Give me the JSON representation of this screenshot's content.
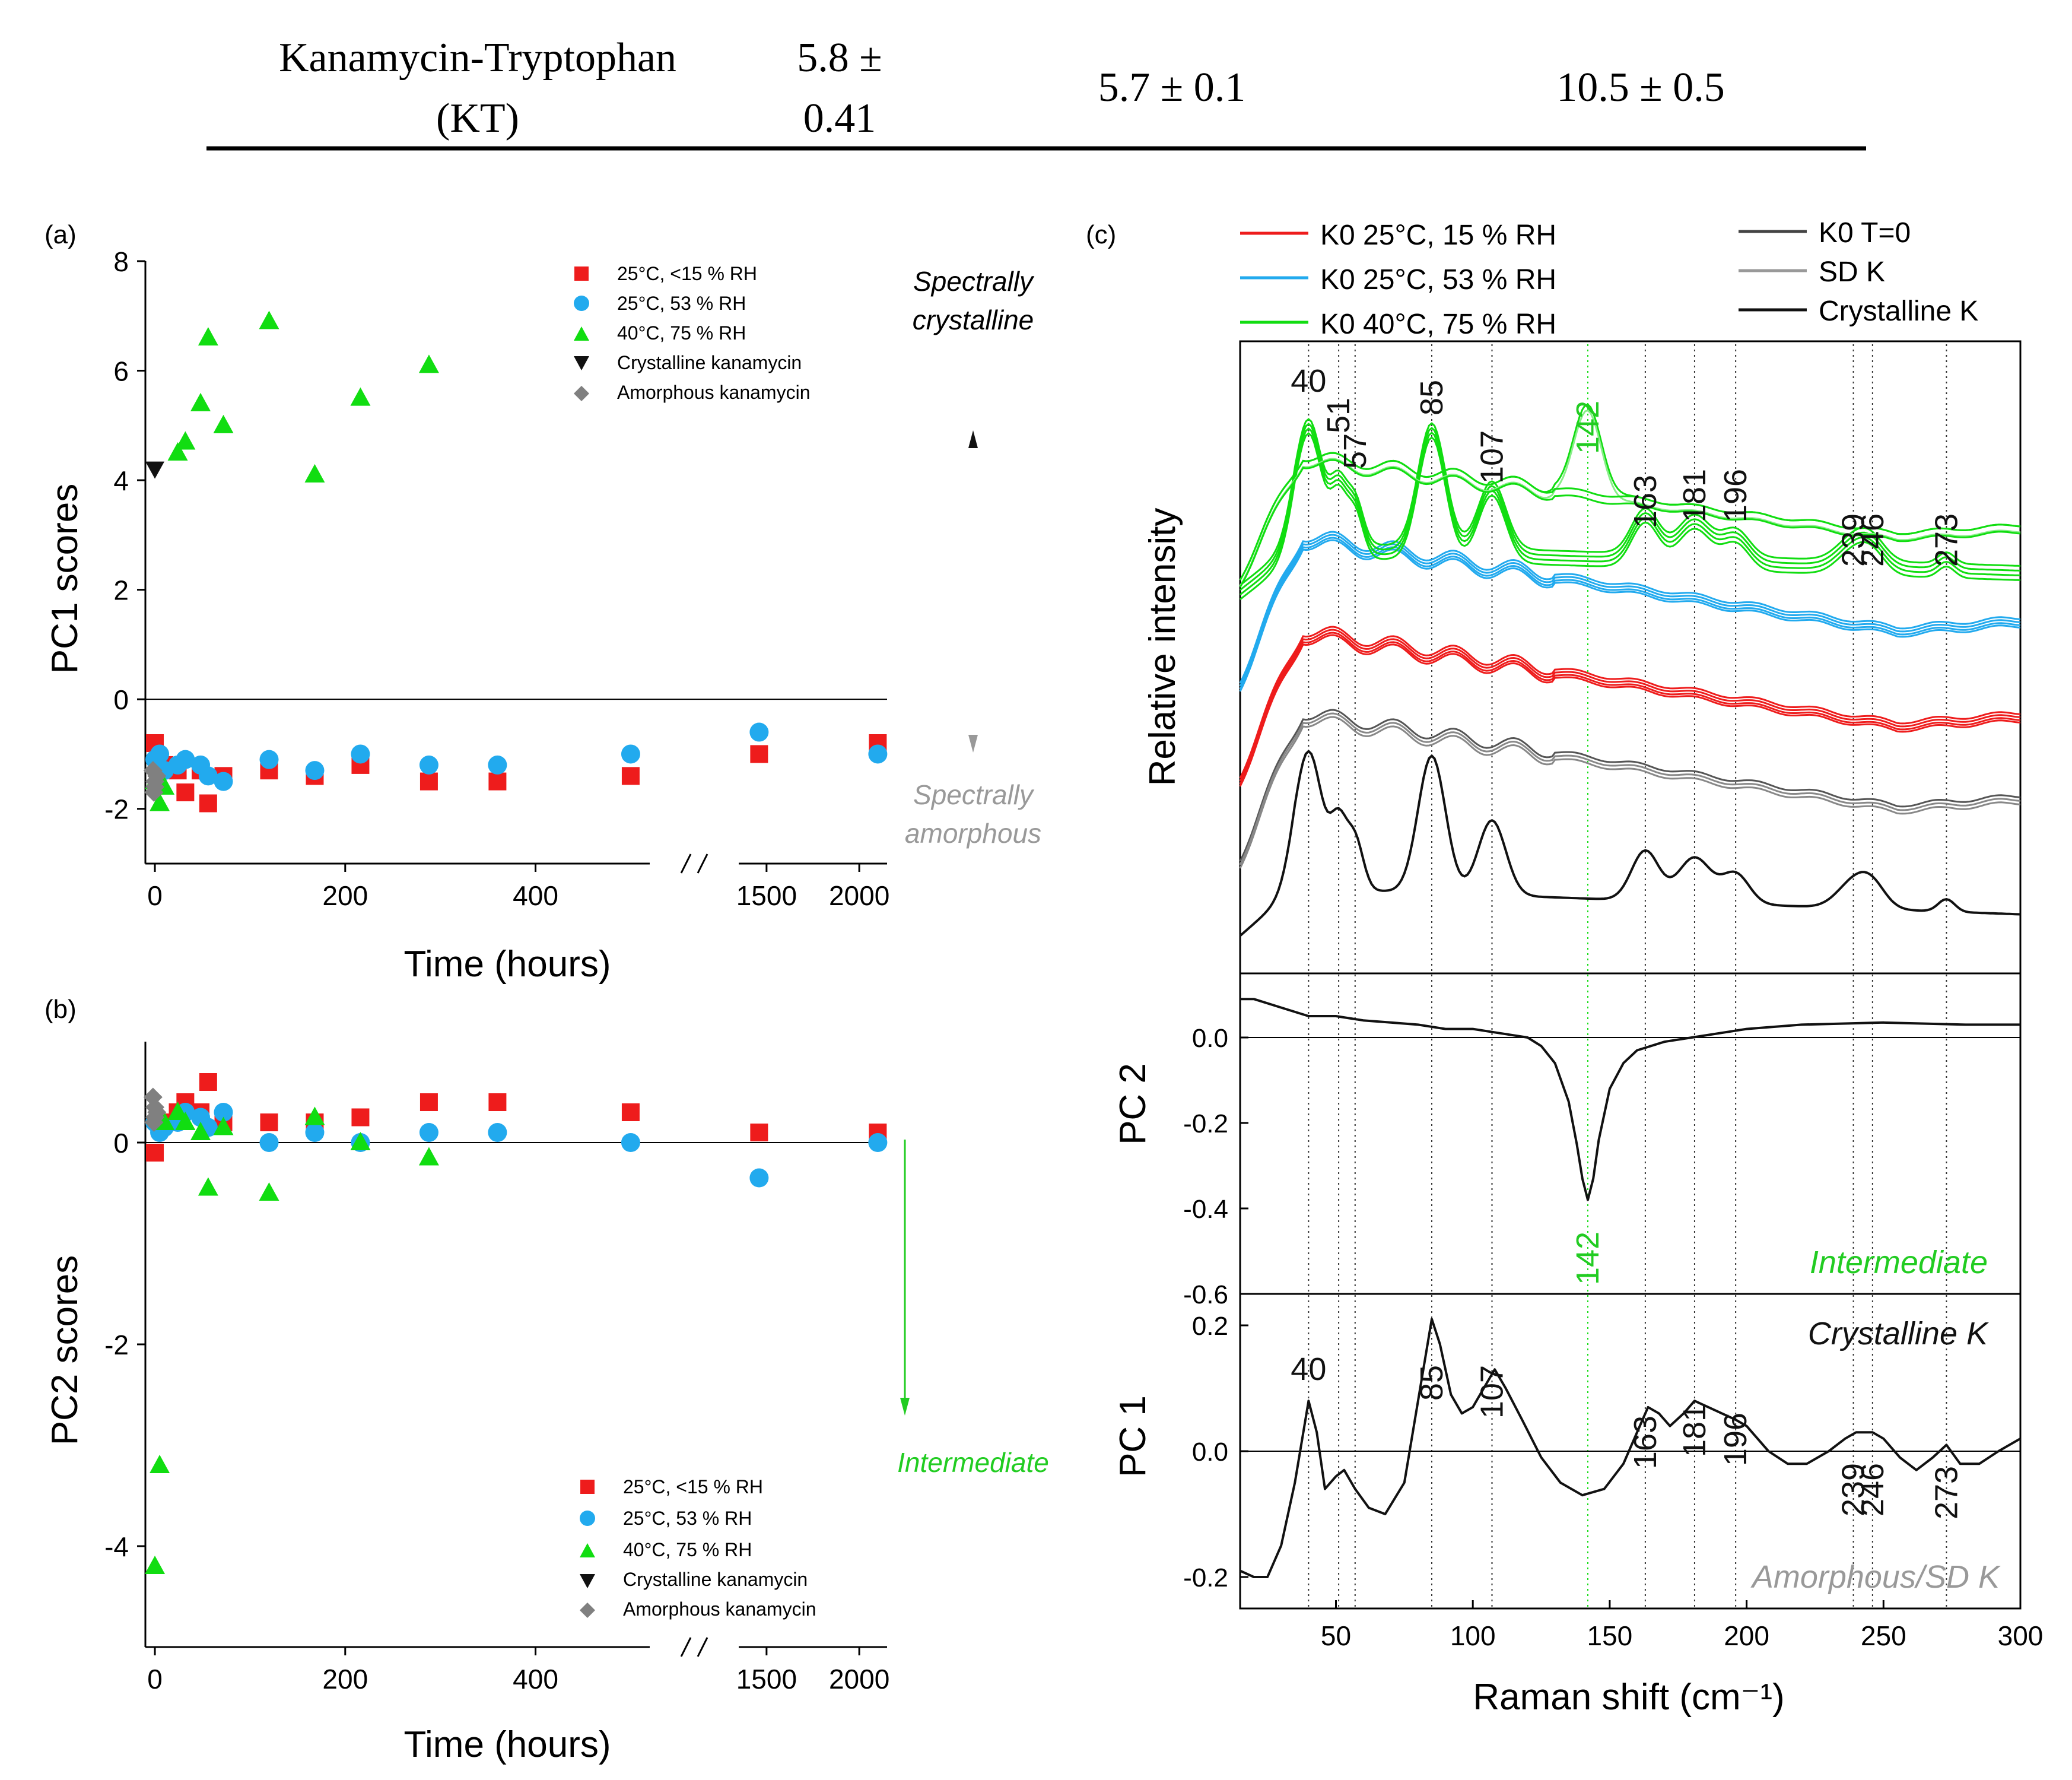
{
  "table_row": {
    "name_line1": "Kanamycin-Tryptophan",
    "name_line2": "(KT)",
    "col2_line1": "5.8 ±",
    "col2_line2": "0.41",
    "col3": "5.7 ± 0.1",
    "col4": "10.5 ± 0.5"
  },
  "colors": {
    "red": "#ee1c1c",
    "blue": "#22aaee",
    "green": "#11dd11",
    "black": "#111111",
    "gray": "#808080",
    "label_green": "#22cc22",
    "label_gray": "#999999"
  },
  "chart_data": [
    {
      "id": "a",
      "panel_label": "(a)",
      "type": "scatter",
      "xlabel": "Time (hours)",
      "ylabel": "PC1 scores",
      "ylim": [
        -3,
        8
      ],
      "yticks": [
        -2,
        0,
        2,
        4,
        6,
        8
      ],
      "xtick_labels": [
        "0",
        "200",
        "400",
        "1500",
        "2000"
      ],
      "x_axis_note": "broken axis: 0-520 h then 1350-2150 h",
      "legend": [
        "25°C, <15 % RH",
        "25°C, 53 % RH",
        "40°C, 75 % RH",
        "Crystalline kanamycin",
        "Amorphous kanamycin"
      ],
      "annotation_top": [
        "Spectrally",
        "crystalline"
      ],
      "annotation_bottom": [
        "Spectrally",
        "amorphous"
      ],
      "series": [
        {
          "name": "25°C, <15 % RH",
          "x": [
            0,
            5,
            10,
            24,
            32,
            48,
            56,
            72,
            120,
            168,
            216,
            288,
            360,
            500,
            1460,
            2100
          ],
          "y": [
            -0.8,
            -1.1,
            -1.2,
            -1.3,
            -1.7,
            -1.3,
            -1.9,
            -1.4,
            -1.3,
            -1.4,
            -1.2,
            -1.5,
            -1.5,
            -1.4,
            -1.0,
            -0.8
          ]
        },
        {
          "name": "25°C, 53 % RH",
          "x": [
            0,
            5,
            10,
            24,
            32,
            48,
            56,
            72,
            120,
            168,
            216,
            288,
            360,
            500,
            1460,
            2100
          ],
          "y": [
            -1.1,
            -1.0,
            -1.3,
            -1.2,
            -1.1,
            -1.2,
            -1.4,
            -1.5,
            -1.1,
            -1.3,
            -1.0,
            -1.2,
            -1.2,
            -1.0,
            -0.6,
            -1.0
          ]
        },
        {
          "name": "40°C, 75 % RH",
          "x": [
            0,
            5,
            10,
            24,
            32,
            48,
            56,
            72,
            120,
            168,
            216,
            288
          ],
          "y": [
            -1.5,
            -1.9,
            -1.6,
            4.5,
            4.7,
            5.4,
            6.6,
            5.0,
            6.9,
            4.1,
            5.5,
            6.1
          ]
        },
        {
          "name": "Crystalline kanamycin",
          "x": [
            0
          ],
          "y": [
            4.2
          ]
        },
        {
          "name": "Amorphous kanamycin",
          "x": [
            -2,
            0,
            2,
            0,
            -1
          ],
          "y": [
            -1.3,
            -1.5,
            -1.4,
            -1.6,
            -1.7
          ]
        }
      ]
    },
    {
      "id": "b",
      "panel_label": "(b)",
      "type": "scatter",
      "xlabel": "Time (hours)",
      "ylabel": "PC2 scores",
      "ylim": [
        -5,
        1
      ],
      "yticks": [
        -4,
        -2,
        0
      ],
      "xtick_labels": [
        "0",
        "200",
        "400",
        "1500",
        "2000"
      ],
      "legend": [
        "25°C, <15 % RH",
        "25°C, 53 % RH",
        "40°C, 75 % RH",
        "Crystalline kanamycin",
        "Amorphous kanamycin"
      ],
      "annotation": "Intermediate",
      "series": [
        {
          "name": "25°C, <15 % RH",
          "x": [
            0,
            5,
            10,
            24,
            32,
            48,
            56,
            72,
            120,
            168,
            216,
            288,
            360,
            500,
            1460,
            2100
          ],
          "y": [
            -0.1,
            0.2,
            0.2,
            0.3,
            0.4,
            0.3,
            0.6,
            0.2,
            0.2,
            0.2,
            0.25,
            0.4,
            0.4,
            0.3,
            0.1,
            0.1
          ]
        },
        {
          "name": "25°C, 53 % RH",
          "x": [
            0,
            5,
            10,
            24,
            32,
            48,
            56,
            72,
            120,
            168,
            216,
            288,
            360,
            500,
            1460,
            2100
          ],
          "y": [
            0.2,
            0.1,
            0.15,
            0.2,
            0.3,
            0.25,
            0.15,
            0.3,
            0.0,
            0.1,
            0.0,
            0.1,
            0.1,
            0.0,
            -0.35,
            0.0
          ]
        },
        {
          "name": "40°C, 75 % RH",
          "x": [
            0,
            5,
            10,
            24,
            32,
            48,
            56,
            72,
            120,
            168,
            216,
            288
          ],
          "y": [
            -4.2,
            -3.2,
            0.2,
            0.3,
            0.2,
            0.1,
            -0.45,
            0.15,
            -0.5,
            0.25,
            0.0,
            -0.15
          ]
        },
        {
          "name": "Amorphous kanamycin",
          "x": [
            -2,
            0,
            2,
            0,
            -1
          ],
          "y": [
            0.45,
            0.35,
            0.3,
            0.25,
            0.2
          ]
        }
      ]
    },
    {
      "id": "c",
      "panel_label": "(c)",
      "type": "line",
      "xlabel": "Raman shift (cm⁻¹)",
      "xlim": [
        15,
        300
      ],
      "xticks": [
        50,
        100,
        150,
        200,
        250,
        300
      ],
      "legend": [
        "K0 25°C, 15 % RH",
        "K0 25°C, 53 % RH",
        "K0 40°C, 75 % RH",
        "K0 T=0",
        "SD K",
        "Crystalline K"
      ],
      "spectra_ylabel": "Relative intensity",
      "peaks_dotted": [
        40,
        51,
        57,
        85,
        107,
        142,
        163,
        181,
        196,
        239,
        246,
        273
      ],
      "spectra_peak_labels": [
        "40",
        "51",
        "57",
        "85",
        "107",
        "142",
        "163",
        "181",
        "196",
        "239",
        "246",
        "273"
      ],
      "pc2": {
        "ylabel": "PC 2",
        "ylim": [
          -0.6,
          0.15
        ],
        "yticks": [
          "0.0",
          "-0.2",
          "-0.4",
          "-0.6"
        ],
        "peak_label": "142",
        "annotation": "Intermediate",
        "x": [
          15,
          20,
          30,
          40,
          50,
          60,
          70,
          80,
          90,
          100,
          110,
          120,
          125,
          130,
          135,
          138,
          140,
          142,
          144,
          146,
          150,
          155,
          160,
          170,
          180,
          200,
          220,
          250,
          280,
          300
        ],
        "y": [
          0.09,
          0.09,
          0.07,
          0.05,
          0.05,
          0.04,
          0.035,
          0.03,
          0.02,
          0.02,
          0.01,
          0.0,
          -0.02,
          -0.06,
          -0.15,
          -0.25,
          -0.33,
          -0.38,
          -0.33,
          -0.24,
          -0.12,
          -0.06,
          -0.03,
          -0.01,
          0.0,
          0.02,
          0.03,
          0.035,
          0.03,
          0.03
        ]
      },
      "pc1": {
        "ylabel": "PC 1",
        "ylim": [
          -0.25,
          0.25
        ],
        "yticks": [
          "0.2",
          "0.0",
          "-0.2"
        ],
        "peak_labels": [
          "40",
          "85",
          "107",
          "163",
          "181",
          "196",
          "239",
          "246",
          "273"
        ],
        "annotation_top": "Crystalline K",
        "annotation_bottom": "Amorphous/SD K",
        "x": [
          15,
          20,
          25,
          30,
          35,
          40,
          43,
          46,
          50,
          53,
          57,
          62,
          68,
          75,
          80,
          85,
          88,
          92,
          96,
          100,
          104,
          108,
          112,
          118,
          125,
          132,
          140,
          148,
          155,
          160,
          164,
          168,
          172,
          177,
          181,
          186,
          191,
          196,
          200,
          208,
          215,
          222,
          230,
          236,
          240,
          246,
          250,
          256,
          262,
          268,
          273,
          278,
          285,
          292,
          300
        ],
        "y": [
          -0.19,
          -0.2,
          -0.2,
          -0.15,
          -0.05,
          0.08,
          0.03,
          -0.06,
          -0.04,
          -0.03,
          -0.06,
          -0.09,
          -0.1,
          -0.05,
          0.08,
          0.21,
          0.17,
          0.09,
          0.06,
          0.07,
          0.1,
          0.13,
          0.1,
          0.05,
          -0.01,
          -0.05,
          -0.07,
          -0.06,
          -0.02,
          0.03,
          0.07,
          0.06,
          0.04,
          0.06,
          0.08,
          0.07,
          0.06,
          0.05,
          0.04,
          0.0,
          -0.02,
          -0.02,
          0.0,
          0.02,
          0.03,
          0.03,
          0.02,
          -0.01,
          -0.03,
          -0.01,
          0.01,
          -0.02,
          -0.02,
          0.0,
          0.02
        ]
      },
      "spectra_series": [
        {
          "name": "K0 25°C, 15 % RH",
          "shape": "amorphous"
        },
        {
          "name": "K0 25°C, 53 % RH",
          "shape": "amorphous"
        },
        {
          "name": "K0 40°C, 75 % RH",
          "shape": "crystalline+intermediate"
        },
        {
          "name": "K0 T=0",
          "shape": "amorphous"
        },
        {
          "name": "SD K",
          "shape": "amorphous"
        },
        {
          "name": "Crystalline K",
          "shape": "crystalline"
        }
      ]
    }
  ]
}
